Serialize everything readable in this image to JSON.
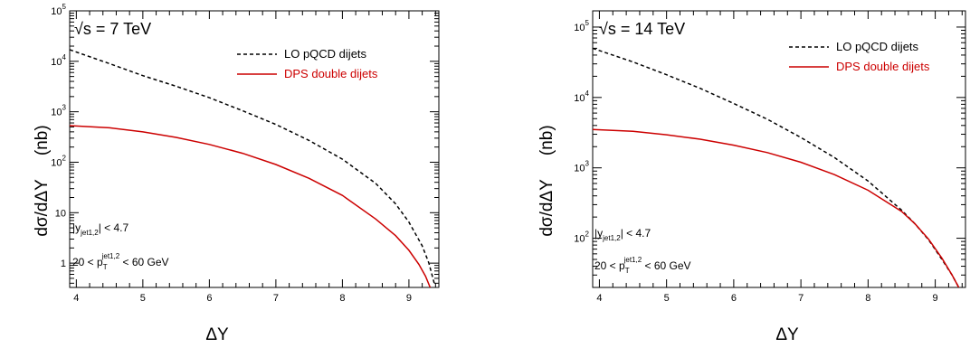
{
  "chart_data": [
    {
      "type": "line",
      "energy_label": "s = 7 TeV",
      "energy_prefix": "√",
      "xlabel": "ΔY",
      "ylabel": "dσ/dΔY",
      "yunit": "(nb)",
      "xlim": [
        3.9,
        9.45
      ],
      "ylim": [
        0.33,
        100000
      ],
      "yscale": "log",
      "x_ticks": [
        4,
        5,
        6,
        7,
        8,
        9
      ],
      "y_ticks": [
        {
          "value": 1,
          "base": "1",
          "exp": ""
        },
        {
          "value": 10,
          "base": "10",
          "exp": ""
        },
        {
          "value": 100,
          "base": "10",
          "exp": "2"
        },
        {
          "value": 1000,
          "base": "10",
          "exp": "3"
        },
        {
          "value": 10000,
          "base": "10",
          "exp": "4"
        },
        {
          "value": 100000,
          "base": "10",
          "exp": "5"
        }
      ],
      "legend_position": "top-right",
      "annotation_rapidity": {
        "pre": "|y",
        "sub": "jet1,2",
        "post": "| < 4.7"
      },
      "annotation_pt": {
        "pre": "20 < p",
        "sub": "T",
        "sup": "jet1,2",
        "post": " < 60 GeV"
      },
      "series": [
        {
          "name": "LO pQCD dijets",
          "style": "dashed",
          "color": "#000000",
          "x": [
            3.9,
            4.5,
            5.0,
            5.5,
            6.0,
            6.5,
            7.0,
            7.5,
            8.0,
            8.5,
            8.8,
            9.0,
            9.2,
            9.3,
            9.38
          ],
          "y": [
            17000,
            9000,
            5200,
            3200,
            1900,
            1050,
            560,
            270,
            115,
            38,
            15,
            6.5,
            2.2,
            1.0,
            0.4
          ]
        },
        {
          "name": "DPS double dijets",
          "style": "solid",
          "color": "#cc0000",
          "x": [
            3.9,
            4.5,
            5.0,
            5.5,
            6.0,
            6.5,
            7.0,
            7.5,
            8.0,
            8.5,
            8.8,
            9.0,
            9.15,
            9.25,
            9.32
          ],
          "y": [
            530,
            480,
            400,
            310,
            225,
            150,
            90,
            48,
            22,
            7.5,
            3.5,
            1.8,
            0.95,
            0.55,
            0.33
          ]
        }
      ]
    },
    {
      "type": "line",
      "energy_label": "s = 14 TeV",
      "energy_prefix": "√",
      "xlabel": "ΔY",
      "ylabel": "dσ/dΔY",
      "yunit": "(nb)",
      "xlim": [
        3.9,
        9.45
      ],
      "ylim": [
        20,
        170000
      ],
      "yscale": "log",
      "x_ticks": [
        4,
        5,
        6,
        7,
        8,
        9
      ],
      "y_ticks": [
        {
          "value": 100,
          "base": "10",
          "exp": "2"
        },
        {
          "value": 1000,
          "base": "10",
          "exp": "3"
        },
        {
          "value": 10000,
          "base": "10",
          "exp": "4"
        },
        {
          "value": 100000,
          "base": "10",
          "exp": "5"
        }
      ],
      "legend_position": "top-right",
      "annotation_rapidity": {
        "pre": "|y",
        "sub": "jet1,2",
        "post": "| < 4.7"
      },
      "annotation_pt": {
        "pre": "20 < p",
        "sub": "T",
        "sup": "jet1,2",
        "post": " < 60 GeV"
      },
      "series": [
        {
          "name": "LO pQCD dijets",
          "style": "dashed",
          "color": "#000000",
          "x": [
            3.9,
            4.5,
            5.0,
            5.5,
            6.0,
            6.5,
            7.0,
            7.5,
            8.0,
            8.5,
            8.7,
            8.9,
            9.1,
            9.25,
            9.35
          ],
          "y": [
            50000,
            32000,
            21000,
            13500,
            8200,
            4900,
            2700,
            1400,
            650,
            250,
            160,
            95,
            50,
            30,
            20
          ]
        },
        {
          "name": "DPS double dijets",
          "style": "solid",
          "color": "#cc0000",
          "x": [
            3.9,
            4.5,
            5.0,
            5.5,
            6.0,
            6.5,
            7.0,
            7.5,
            8.0,
            8.5,
            8.7,
            8.9,
            9.1,
            9.25,
            9.35
          ],
          "y": [
            3500,
            3300,
            2950,
            2550,
            2100,
            1650,
            1200,
            800,
            480,
            240,
            160,
            97,
            52,
            30,
            20
          ]
        }
      ]
    }
  ]
}
